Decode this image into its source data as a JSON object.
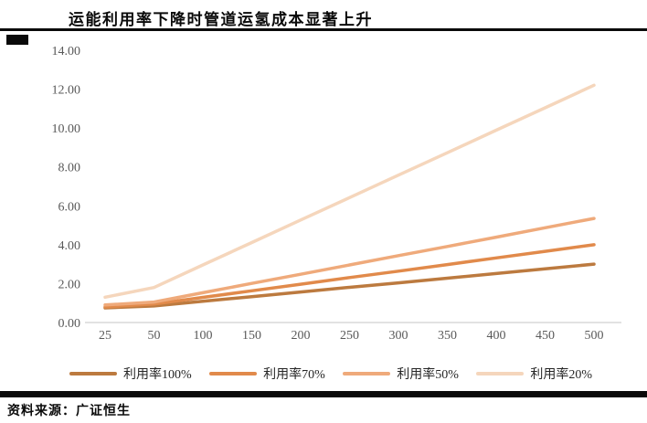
{
  "page": {
    "title": "运能利用率下降时管道运氢成本显著上升",
    "source": "资料来源：广证恒生"
  },
  "colors": {
    "title_text": "#0a0a0a",
    "axis_label": "#595959",
    "axis_line": "#d9d9d9",
    "rule": "#0a0a0a",
    "legend_text": "#262626"
  },
  "chart_data": {
    "type": "line",
    "title": "运能利用率下降时管道运氢成本显著上升",
    "categories": [
      "25",
      "50",
      "100",
      "150",
      "200",
      "250",
      "300",
      "350",
      "400",
      "450",
      "500"
    ],
    "series": [
      {
        "name": "利用率100%",
        "color": "#bc7a3f",
        "values": [
          0.75,
          0.85,
          1.09,
          1.33,
          1.57,
          1.81,
          2.04,
          2.28,
          2.52,
          2.76,
          3.0
        ]
      },
      {
        "name": "利用率70%",
        "color": "#e18a4b",
        "values": [
          0.8,
          0.95,
          1.29,
          1.63,
          1.97,
          2.31,
          2.64,
          2.98,
          3.32,
          3.66,
          4.0
        ]
      },
      {
        "name": "利用率50%",
        "color": "#efaa7b",
        "values": [
          0.9,
          1.05,
          1.53,
          2.01,
          2.48,
          2.96,
          3.44,
          3.91,
          4.39,
          4.87,
          5.35
        ]
      },
      {
        "name": "利用率20%",
        "color": "#f5d6bc",
        "values": [
          1.3,
          1.8,
          2.96,
          4.11,
          5.27,
          6.42,
          7.58,
          8.73,
          9.89,
          11.04,
          12.2
        ]
      }
    ],
    "xlabel": "",
    "ylabel": "",
    "ylim": [
      0,
      14
    ],
    "y_tick_step": 2,
    "y_ticks": [
      "0.00",
      "2.00",
      "4.00",
      "6.00",
      "8.00",
      "10.00",
      "12.00",
      "14.00"
    ],
    "grid": false,
    "legend_position": "bottom"
  }
}
